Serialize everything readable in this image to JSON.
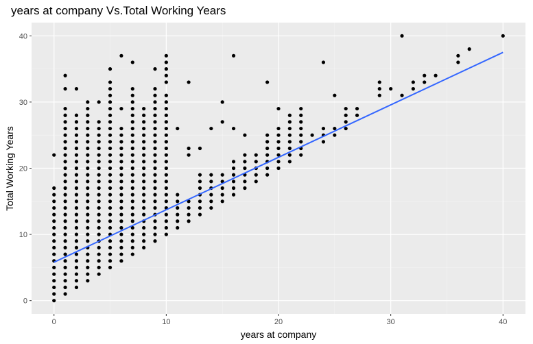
{
  "chart_data": {
    "type": "scatter",
    "title": "years at company Vs.Total Working Years",
    "xlabel": "years at company",
    "ylabel": "Total Working Years",
    "xlim": [
      -2,
      42
    ],
    "ylim": [
      -2,
      42
    ],
    "xticks": [
      0,
      10,
      20,
      30,
      40
    ],
    "yticks": [
      0,
      10,
      20,
      30,
      40
    ],
    "grid": true,
    "point_color": "#000000",
    "trend_color": "#3366FF",
    "panel_color": "#EBEBEB",
    "trend_line": {
      "x": [
        0,
        40
      ],
      "y": [
        5.8,
        37.5
      ]
    },
    "point_ranges": [
      {
        "x": 0,
        "y_min": 0,
        "y_max": 17,
        "extra": [
          22
        ]
      },
      {
        "x": 1,
        "y_min": 1,
        "y_max": 29,
        "extra": [
          32,
          34
        ]
      },
      {
        "x": 2,
        "y_min": 2,
        "y_max": 28,
        "extra": [
          32
        ]
      },
      {
        "x": 3,
        "y_min": 3,
        "y_max": 30,
        "extra": []
      },
      {
        "x": 4,
        "y_min": 4,
        "y_max": 27,
        "extra": [
          30
        ]
      },
      {
        "x": 5,
        "y_min": 5,
        "y_max": 33,
        "extra": [
          35
        ]
      },
      {
        "x": 6,
        "y_min": 6,
        "y_max": 26,
        "extra": [
          29,
          37
        ]
      },
      {
        "x": 7,
        "y_min": 7,
        "y_max": 32,
        "extra": [
          36
        ]
      },
      {
        "x": 8,
        "y_min": 8,
        "y_max": 29,
        "extra": []
      },
      {
        "x": 9,
        "y_min": 9,
        "y_max": 32,
        "extra": [
          35
        ]
      },
      {
        "x": 10,
        "y_min": 10,
        "y_max": 31,
        "extra": [
          33,
          34,
          35,
          36,
          37
        ]
      },
      {
        "x": 11,
        "y_min": 11,
        "y_max": 16,
        "extra": [
          26
        ]
      },
      {
        "x": 12,
        "y_min": 12,
        "y_max": 15,
        "extra": [
          22,
          23,
          33
        ]
      },
      {
        "x": 13,
        "y_min": 13,
        "y_max": 19,
        "extra": [
          23
        ]
      },
      {
        "x": 14,
        "y_min": 14,
        "y_max": 19,
        "extra": [
          26
        ]
      },
      {
        "x": 15,
        "y_min": 15,
        "y_max": 19,
        "extra": [
          27,
          30
        ]
      },
      {
        "x": 16,
        "y_min": 16,
        "y_max": 21,
        "extra": [
          26,
          37
        ]
      },
      {
        "x": 17,
        "y_min": 17,
        "y_max": 22,
        "extra": [
          25
        ]
      },
      {
        "x": 18,
        "y_min": 18,
        "y_max": 22,
        "extra": []
      },
      {
        "x": 19,
        "y_min": 19,
        "y_max": 25,
        "extra": [
          33
        ]
      },
      {
        "x": 20,
        "y_min": 20,
        "y_max": 26,
        "extra": [
          29
        ]
      },
      {
        "x": 21,
        "y_min": 21,
        "y_max": 28,
        "extra": []
      },
      {
        "x": 22,
        "y_min": 22,
        "y_max": 29,
        "extra": []
      },
      {
        "x": 23,
        "y_min": 25,
        "y_max": 25,
        "extra": []
      },
      {
        "x": 24,
        "y_min": 24,
        "y_max": 26,
        "extra": [
          36
        ]
      },
      {
        "x": 25,
        "y_min": 25,
        "y_max": 26,
        "extra": [
          31
        ]
      },
      {
        "x": 26,
        "y_min": 26,
        "y_max": 29,
        "extra": []
      },
      {
        "x": 27,
        "y_min": 28,
        "y_max": 29,
        "extra": []
      },
      {
        "x": 29,
        "y_min": 31,
        "y_max": 33,
        "extra": []
      },
      {
        "x": 30,
        "y_min": 32,
        "y_max": 32,
        "extra": []
      },
      {
        "x": 31,
        "y_min": 31,
        "y_max": 31,
        "extra": [
          40
        ]
      },
      {
        "x": 32,
        "y_min": 32,
        "y_max": 33,
        "extra": []
      },
      {
        "x": 33,
        "y_min": 33,
        "y_max": 34,
        "extra": []
      },
      {
        "x": 34,
        "y_min": 34,
        "y_max": 34,
        "extra": []
      },
      {
        "x": 36,
        "y_min": 36,
        "y_max": 37,
        "extra": []
      },
      {
        "x": 37,
        "y_min": 38,
        "y_max": 38,
        "extra": []
      },
      {
        "x": 40,
        "y_min": 40,
        "y_max": 40,
        "extra": []
      }
    ]
  }
}
